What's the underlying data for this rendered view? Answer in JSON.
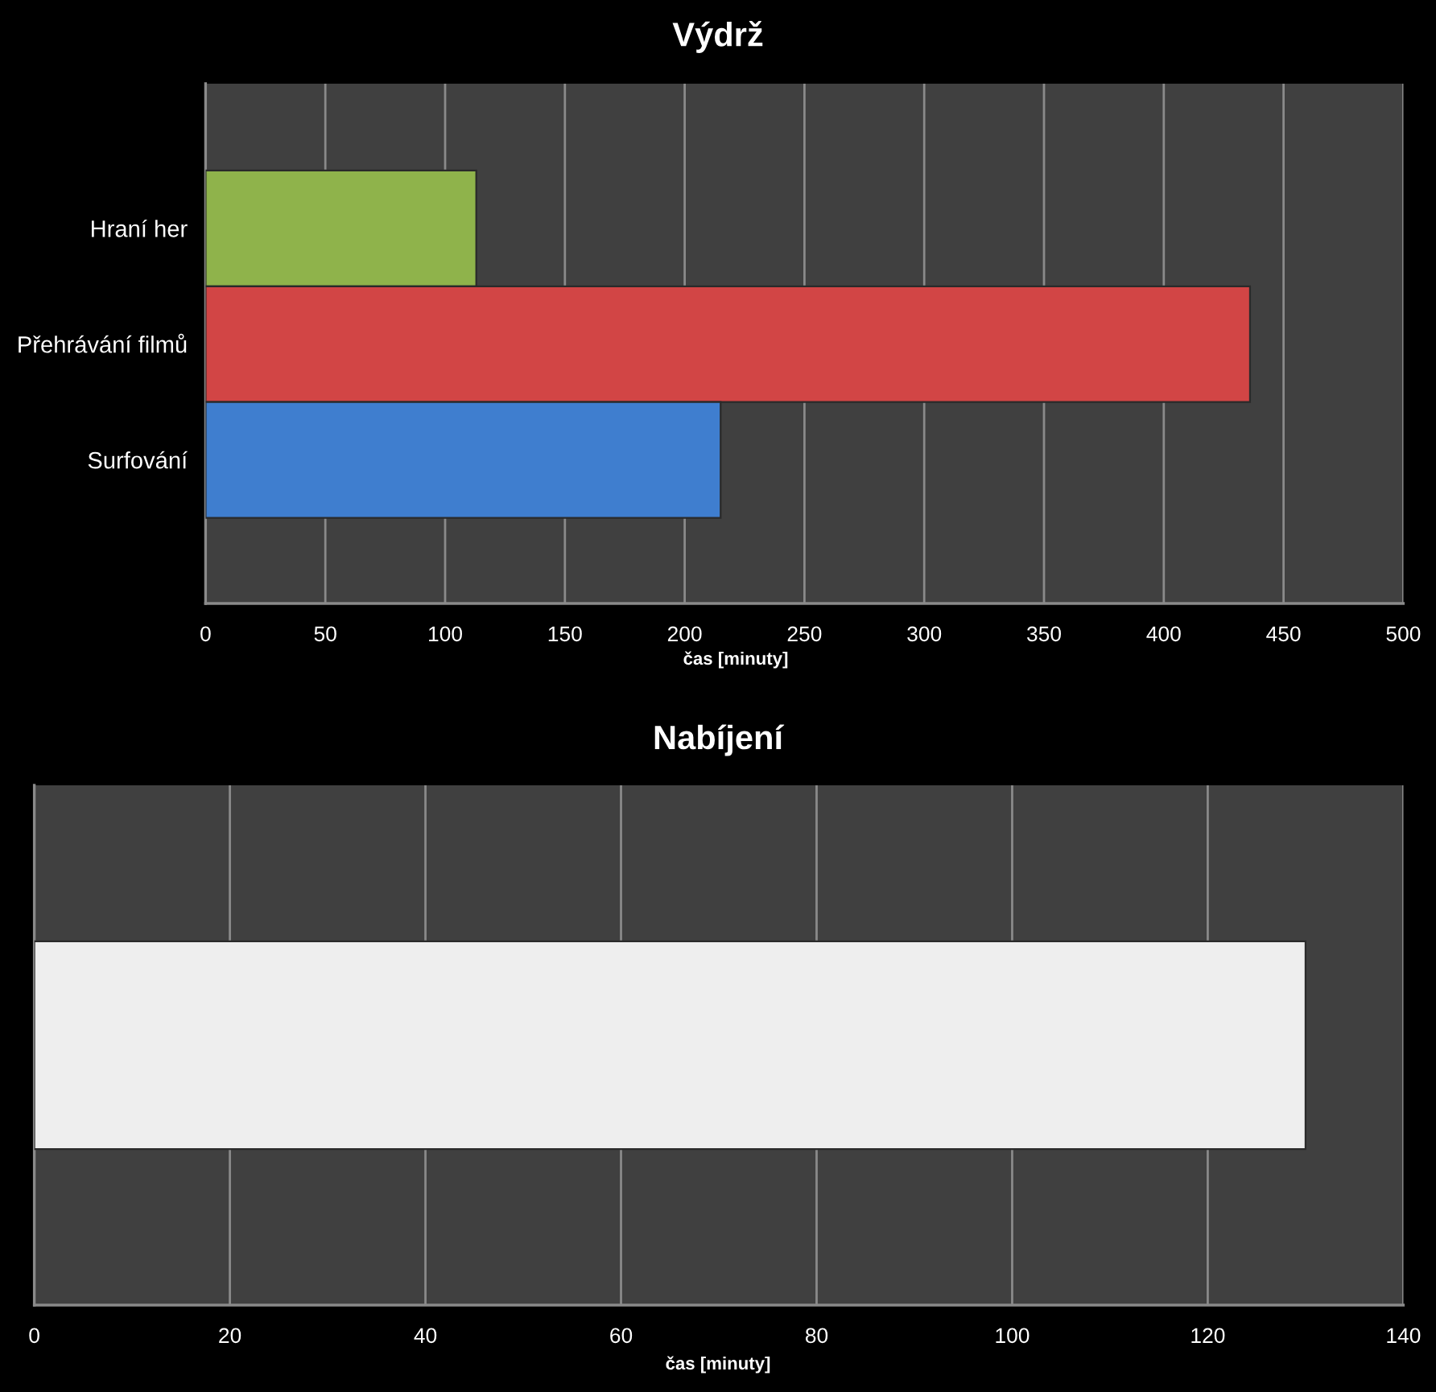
{
  "chart_data": [
    {
      "type": "bar",
      "orientation": "horizontal",
      "title": "Výdrž",
      "xlabel": "čas [minuty]",
      "categories": [
        "Hraní her",
        "Přehrávání filmů",
        "Surfování"
      ],
      "values": [
        113,
        436,
        215
      ],
      "colors": [
        "#8fb34b",
        "#d24545",
        "#3f7ecf"
      ],
      "xlim": [
        0,
        500
      ],
      "xticks": [
        0,
        50,
        100,
        150,
        200,
        250,
        300,
        350,
        400,
        450,
        500
      ],
      "grid": "x"
    },
    {
      "type": "bar",
      "orientation": "horizontal",
      "title": "Nabíjení",
      "xlabel": "čas [minuty]",
      "categories": [
        null
      ],
      "values": [
        130
      ],
      "colors": [
        "#eeeeee"
      ],
      "xlim": [
        0,
        140
      ],
      "xticks": [
        0,
        20,
        40,
        60,
        80,
        100,
        120,
        140
      ],
      "grid": "x"
    }
  ]
}
